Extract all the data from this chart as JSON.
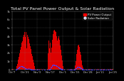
{
  "title": "Total PV Panel Power Output & Solar Radiation",
  "legend_labels": [
    "PV Power Output",
    "Solar Radiation"
  ],
  "legend_colors": [
    "#ff0000",
    "#4444ff"
  ],
  "bg_color": "#000000",
  "plot_bg_color": "#000000",
  "grid_color": "#888888",
  "bar_color": "#dd0000",
  "dot_color": "#4444ff",
  "n_points": 365,
  "bar_envelope": [
    0,
    0,
    0,
    0,
    0,
    0,
    0,
    0,
    0,
    0,
    0,
    0,
    0,
    0,
    0,
    0.03,
    0.06,
    0.09,
    0.12,
    0.15,
    0.18,
    0.21,
    0.24,
    0.27,
    0.3,
    0.33,
    0.36,
    0.39,
    0.42,
    0.45,
    0.48,
    0.51,
    0.54,
    0.57,
    0.6,
    0.63,
    0.66,
    0.69,
    0.72,
    0.75,
    0.78,
    0.8,
    0.82,
    0.85,
    0.88,
    0.9,
    0.92,
    0.95,
    0.97,
    1.0,
    0.97,
    0.95,
    0.92,
    0.9,
    0.88,
    0.85,
    0.82,
    0.8,
    0.78,
    0.75,
    0.72,
    0.69,
    0.66,
    0.63,
    0.6,
    0.57,
    0.54,
    0.51,
    0.48,
    0.45,
    0.42,
    0.39,
    0.36,
    0.33,
    0.3,
    0.27,
    0.24,
    0.21,
    0.18,
    0.15,
    0.12,
    0.09,
    0.06,
    0.03,
    0,
    0,
    0,
    0,
    0,
    0,
    0,
    0,
    0,
    0,
    0,
    0,
    0,
    0,
    0,
    0,
    0,
    0,
    0,
    0,
    0,
    0,
    0,
    0,
    0,
    0,
    0,
    0,
    0,
    0,
    0,
    0,
    0,
    0,
    0,
    0,
    0,
    0,
    0,
    0,
    0,
    0,
    0,
    0,
    0,
    0,
    0,
    0,
    0,
    0,
    0,
    0.02,
    0.05,
    0.09,
    0.14,
    0.2,
    0.27,
    0.35,
    0.44,
    0.54,
    0.64,
    0.72,
    0.78,
    0.83,
    0.87,
    0.9,
    0.92,
    0.94,
    0.95,
    0.96,
    0.95,
    0.94,
    0.92,
    0.9,
    0.88,
    0.85,
    0.82,
    0.78,
    0.74,
    0.7,
    0.66,
    0.7,
    0.74,
    0.78,
    0.82,
    0.8,
    0.77,
    0.73,
    0.68,
    0.63,
    0.58,
    0.53,
    0.48,
    0.43,
    0.38,
    0.33,
    0.28,
    0.23,
    0.18,
    0.13,
    0.09,
    0.06,
    0.03,
    0.01,
    0,
    0,
    0,
    0,
    0,
    0,
    0,
    0,
    0,
    0,
    0,
    0,
    0,
    0,
    0,
    0,
    0,
    0,
    0,
    0,
    0,
    0,
    0,
    0,
    0,
    0,
    0,
    0,
    0,
    0,
    0,
    0,
    0,
    0,
    0,
    0,
    0,
    0.01,
    0.03,
    0.06,
    0.1,
    0.15,
    0.2,
    0.26,
    0.32,
    0.38,
    0.43,
    0.48,
    0.52,
    0.55,
    0.57,
    0.59,
    0.6,
    0.59,
    0.57,
    0.54,
    0.51,
    0.47,
    0.43,
    0.39,
    0.35,
    0.31,
    0.27,
    0.23,
    0.19,
    0.15,
    0.11,
    0.08,
    0.05,
    0.03,
    0.01,
    0,
    0,
    0,
    0,
    0,
    0,
    0,
    0,
    0,
    0,
    0,
    0,
    0,
    0,
    0,
    0,
    0,
    0,
    0,
    0,
    0,
    0,
    0,
    0,
    0,
    0,
    0,
    0,
    0,
    0,
    0,
    0,
    0,
    0,
    0,
    0,
    0,
    0,
    0,
    0,
    0,
    0,
    0,
    0,
    0,
    0,
    0,
    0,
    0,
    0,
    0,
    0,
    0,
    0,
    0,
    0,
    0,
    0,
    0,
    0,
    0,
    0,
    0,
    0,
    0,
    0,
    0,
    0,
    0,
    0,
    0,
    0,
    0,
    0,
    0,
    0,
    0,
    0,
    0,
    0,
    0,
    0,
    0,
    0,
    0,
    0,
    0,
    0,
    0,
    0,
    0,
    0,
    0,
    0,
    0,
    0,
    0,
    0,
    0,
    0,
    0,
    0,
    0,
    0,
    0,
    0,
    0,
    0,
    0,
    0,
    0
  ],
  "spikes": {
    "46": 2.5,
    "47": 3.0,
    "48": 4.0,
    "49": 5.0,
    "50": 4.5,
    "51": 3.8,
    "52": 3.0,
    "53": 2.5,
    "130": 2.0,
    "131": 2.5,
    "132": 3.0,
    "133": 3.5,
    "134": 3.0,
    "135": 2.5,
    "136": 2.0,
    "137": 2.8,
    "138": 3.2,
    "139": 2.5,
    "140": 2.0
  },
  "dot_envelope": [
    0,
    0,
    0,
    0,
    0,
    0,
    0,
    0,
    0,
    0,
    0,
    0,
    0,
    0,
    0,
    0.02,
    0.04,
    0.06,
    0.08,
    0.1,
    0.12,
    0.14,
    0.16,
    0.18,
    0.2,
    0.22,
    0.24,
    0.26,
    0.28,
    0.3,
    0.32,
    0.33,
    0.34,
    0.35,
    0.34,
    0.33,
    0.32,
    0.31,
    0.3,
    0.28,
    0.26,
    0.24,
    0.22,
    0.2,
    0.18,
    0.16,
    0.14,
    0.12,
    0.1,
    0.08,
    0.07,
    0.06,
    0.05,
    0.05,
    0.05,
    0.06,
    0.07,
    0.08,
    0.09,
    0.1,
    0.09,
    0.08,
    0.07,
    0.06,
    0.05,
    0.04,
    0.03,
    0.02,
    0.02,
    0.01,
    0.01,
    0.01,
    0.01,
    0.01,
    0.01,
    0.01,
    0.01,
    0.01,
    0.01,
    0.01,
    0.01,
    0.01,
    0,
    0,
    0,
    0,
    0,
    0,
    0,
    0,
    0,
    0,
    0,
    0,
    0,
    0,
    0,
    0,
    0,
    0,
    0,
    0,
    0,
    0,
    0,
    0,
    0,
    0,
    0,
    0,
    0,
    0,
    0,
    0,
    0,
    0,
    0,
    0,
    0,
    0,
    0,
    0,
    0,
    0,
    0,
    0,
    0,
    0,
    0,
    0,
    0,
    0,
    0,
    0,
    0,
    0.01,
    0.02,
    0.04,
    0.07,
    0.11,
    0.16,
    0.21,
    0.27,
    0.33,
    0.38,
    0.42,
    0.45,
    0.47,
    0.48,
    0.49,
    0.48,
    0.47,
    0.46,
    0.45,
    0.44,
    0.43,
    0.42,
    0.41,
    0.4,
    0.39,
    0.38,
    0.36,
    0.34,
    0.32,
    0.3,
    0.28,
    0.26,
    0.24,
    0.22,
    0.2,
    0.18,
    0.16,
    0.14,
    0.12,
    0.1,
    0.08,
    0.06,
    0.05,
    0.04,
    0.03,
    0.02,
    0.02,
    0.01,
    0.01,
    0.01,
    0.01,
    0.01,
    0,
    0,
    0,
    0,
    0,
    0,
    0,
    0,
    0,
    0,
    0,
    0,
    0,
    0,
    0,
    0,
    0,
    0,
    0,
    0,
    0,
    0,
    0,
    0,
    0,
    0,
    0,
    0,
    0,
    0,
    0,
    0,
    0,
    0,
    0,
    0,
    0,
    0,
    0.01,
    0.02,
    0.03,
    0.05,
    0.08,
    0.11,
    0.14,
    0.17,
    0.2,
    0.23,
    0.25,
    0.27,
    0.28,
    0.29,
    0.29,
    0.28,
    0.27,
    0.25,
    0.23,
    0.21,
    0.19,
    0.17,
    0.15,
    0.13,
    0.11,
    0.09,
    0.07,
    0.05,
    0.04,
    0.03,
    0.02,
    0.01,
    0.01,
    0,
    0,
    0,
    0,
    0,
    0,
    0,
    0,
    0,
    0,
    0,
    0,
    0,
    0,
    0,
    0,
    0,
    0,
    0,
    0,
    0,
    0,
    0,
    0,
    0,
    0,
    0,
    0,
    0,
    0,
    0,
    0,
    0,
    0,
    0,
    0,
    0,
    0,
    0,
    0,
    0,
    0,
    0,
    0,
    0,
    0,
    0,
    0,
    0,
    0,
    0,
    0,
    0,
    0,
    0,
    0,
    0,
    0,
    0,
    0,
    0,
    0,
    0,
    0,
    0,
    0,
    0,
    0,
    0,
    0,
    0,
    0,
    0,
    0,
    0,
    0,
    0,
    0,
    0,
    0,
    0,
    0,
    0,
    0,
    0,
    0,
    0,
    0,
    0,
    0,
    0,
    0,
    0,
    0,
    0,
    0,
    0,
    0,
    0,
    0,
    0,
    0,
    0,
    0,
    0,
    0,
    0,
    0,
    0,
    0,
    0,
    0
  ],
  "xlabels": [
    "Oct'7",
    "Oct'21",
    "Nov'3",
    "Nov'17",
    "Dec'1",
    "Dec'15",
    "Dec'28",
    "Jan'11",
    "Jan'25"
  ],
  "ylim_max": 7000,
  "yticks": [
    0,
    1000,
    2000,
    3000,
    4000,
    5000,
    6000,
    7000
  ],
  "ytick_labels": [
    "0",
    "1k",
    "2k",
    "3k",
    "4k",
    "5k",
    "6k",
    "7k"
  ],
  "title_fontsize": 4.5,
  "tick_fontsize": 2.8,
  "legend_fontsize": 2.8
}
